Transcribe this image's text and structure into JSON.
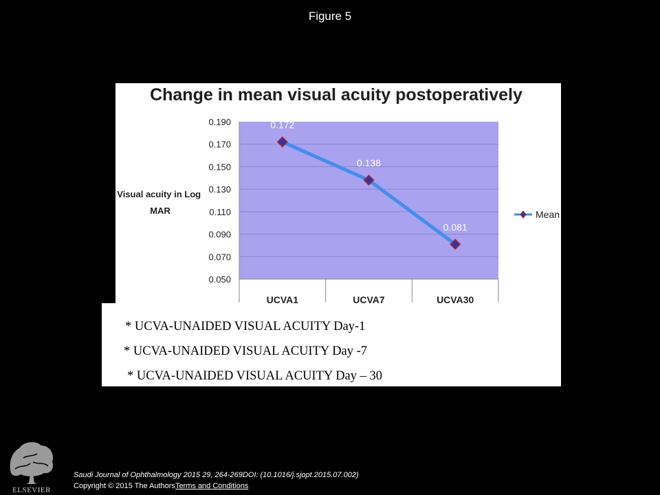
{
  "page": {
    "figure_title": "Figure 5",
    "journal_citation": "Saudi Journal of Ophthalmology 2015 29, 264-269DOI: (10.1016/j.sjopt.2015.07.002)",
    "copyright": "Copyright © 2015 The Authors",
    "terms_link": "Terms and Conditions",
    "publisher": "ELSEVIER"
  },
  "chart_data": {
    "type": "line",
    "title": "Change in mean visual acuity postoperatively",
    "xlabel": "",
    "ylabel": "Visual acuity in Log MAR",
    "ylabel_lines": [
      "Visual acuity in Log",
      "MAR"
    ],
    "categories": [
      "UCVA1",
      "UCVA7",
      "UCVA30"
    ],
    "series": [
      {
        "name": "Mean",
        "values": [
          0.172,
          0.138,
          0.081
        ],
        "data_labels": [
          "0.172",
          "0.138",
          "0.081"
        ]
      }
    ],
    "ylim": [
      0.05,
      0.19
    ],
    "yticks": [
      "0.190",
      "0.170",
      "0.150",
      "0.130",
      "0.110",
      "0.090",
      "0.070",
      "0.050"
    ],
    "ytick_values": [
      0.19,
      0.17,
      0.15,
      0.13,
      0.11,
      0.09,
      0.07,
      0.05
    ],
    "grid": true,
    "legend": "right",
    "colors": {
      "plot_bg": "#a9a2ef",
      "line": "#3f8ff0",
      "marker": "#283a9e",
      "marker_edge": "#c01a28",
      "grid": "#8c86c8"
    }
  },
  "notes": [
    "* UCVA-UNAIDED VISUAL ACUITY Day-1",
    "* UCVA-UNAIDED VISUAL ACUITY Day -7",
    "* UCVA-UNAIDED VISUAL ACUITY Day – 30"
  ]
}
